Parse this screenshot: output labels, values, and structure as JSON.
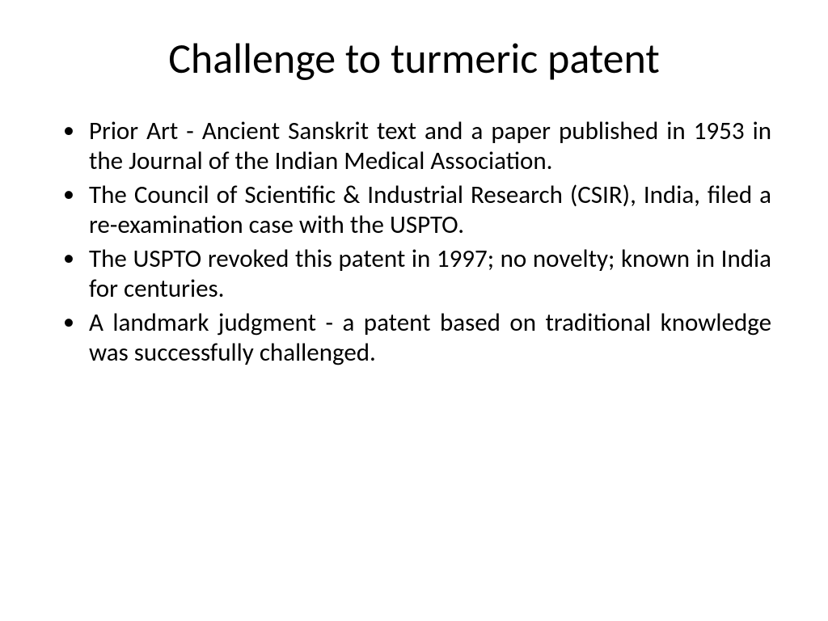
{
  "slide": {
    "title": "Challenge to turmeric patent",
    "bullets": [
      "Prior Art - Ancient Sanskrit text and a paper published in 1953 in the Journal of the Indian Medical Association.",
      "The Council of Scientific & Industrial Research (CSIR), India, filed a re-examination case with the USPTO.",
      "The USPTO revoked this patent in 1997; no novelty; known in India for centuries.",
      "A landmark judgment - a patent based on traditional knowledge was successfully challenged."
    ],
    "title_fontsize": 52,
    "body_fontsize": 31,
    "text_color": "#000000",
    "background_color": "#ffffff",
    "text_align": "justify"
  }
}
